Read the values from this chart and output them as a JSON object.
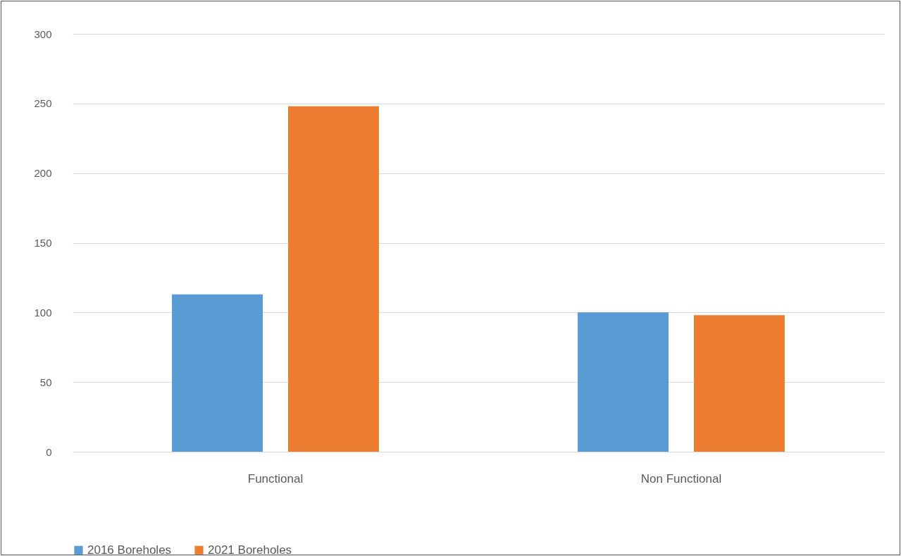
{
  "chart_data": {
    "type": "bar",
    "categories": [
      "Functional",
      "Non Functional"
    ],
    "series": [
      {
        "name": "2016 Boreholes",
        "color": "#5b9bd5",
        "values": [
          113,
          100
        ]
      },
      {
        "name": "2021 Boreholes",
        "color": "#ed7d31",
        "values": [
          248,
          98
        ]
      }
    ],
    "ylim": [
      0,
      300
    ],
    "yticks": [
      0,
      50,
      100,
      150,
      200,
      250,
      300
    ],
    "grid": "y",
    "legend": "bottom"
  }
}
